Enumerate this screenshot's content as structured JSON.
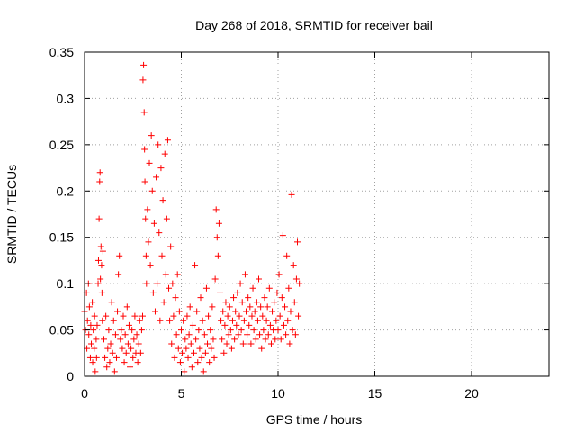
{
  "chart_data": {
    "type": "scatter",
    "title": "Day 268 of 2018, SRMTID for receiver bail",
    "xlabel": "GPS time / hours",
    "ylabel": "SRMTID / TECUs",
    "xlim": [
      0,
      24
    ],
    "ylim": [
      0,
      0.35
    ],
    "x_ticks": [
      0,
      5,
      10,
      15,
      20
    ],
    "x_tick_labels": [
      "0",
      "5",
      "10",
      "15",
      "20"
    ],
    "y_ticks": [
      0,
      0.05,
      0.1,
      0.15,
      0.2,
      0.25,
      0.3,
      0.35
    ],
    "y_tick_labels": [
      "0",
      "0.05",
      "0.1",
      "0.15",
      "0.2",
      "0.25",
      "0.3",
      "0.35"
    ],
    "grid": true,
    "marker": "+",
    "color": "#ff0000",
    "series": [
      {
        "name": "SRMTID",
        "points": [
          [
            0.0,
            0.07
          ],
          [
            0.05,
            0.05
          ],
          [
            0.1,
            0.09
          ],
          [
            0.12,
            0.03
          ],
          [
            0.15,
            0.06
          ],
          [
            0.2,
            0.1
          ],
          [
            0.22,
            0.045
          ],
          [
            0.25,
            0.075
          ],
          [
            0.3,
            0.02
          ],
          [
            0.32,
            0.055
          ],
          [
            0.35,
            0.035
          ],
          [
            0.4,
            0.08
          ],
          [
            0.42,
            0.015
          ],
          [
            0.45,
            0.05
          ],
          [
            0.5,
            0.03
          ],
          [
            0.52,
            0.065
          ],
          [
            0.55,
            0.005
          ],
          [
            0.6,
            0.04
          ],
          [
            0.62,
            0.02
          ],
          [
            0.65,
            0.055
          ],
          [
            0.7,
            0.1
          ],
          [
            0.72,
            0.125
          ],
          [
            0.75,
            0.17
          ],
          [
            0.78,
            0.21
          ],
          [
            0.8,
            0.22
          ],
          [
            0.82,
            0.105
          ],
          [
            0.85,
            0.14
          ],
          [
            0.88,
            0.12
          ],
          [
            0.9,
            0.09
          ],
          [
            0.92,
            0.06
          ],
          [
            0.95,
            0.135
          ],
          [
            1.0,
            0.04
          ],
          [
            1.05,
            0.02
          ],
          [
            1.1,
            0.065
          ],
          [
            1.15,
            0.01
          ],
          [
            1.2,
            0.03
          ],
          [
            1.25,
            0.05
          ],
          [
            1.3,
            0.015
          ],
          [
            1.35,
            0.035
          ],
          [
            1.4,
            0.08
          ],
          [
            1.45,
            0.025
          ],
          [
            1.5,
            0.06
          ],
          [
            1.55,
            0.005
          ],
          [
            1.6,
            0.045
          ],
          [
            1.65,
            0.02
          ],
          [
            1.7,
            0.07
          ],
          [
            1.75,
            0.11
          ],
          [
            1.8,
            0.13
          ],
          [
            1.85,
            0.04
          ],
          [
            1.9,
            0.05
          ],
          [
            1.95,
            0.03
          ],
          [
            2.0,
            0.065
          ],
          [
            2.05,
            0.015
          ],
          [
            2.1,
            0.045
          ],
          [
            2.15,
            0.025
          ],
          [
            2.2,
            0.075
          ],
          [
            2.25,
            0.035
          ],
          [
            2.3,
            0.055
          ],
          [
            2.35,
            0.01
          ],
          [
            2.4,
            0.03
          ],
          [
            2.45,
            0.05
          ],
          [
            2.5,
            0.02
          ],
          [
            2.55,
            0.04
          ],
          [
            2.6,
            0.065
          ],
          [
            2.65,
            0.025
          ],
          [
            2.7,
            0.045
          ],
          [
            2.75,
            0.015
          ],
          [
            2.8,
            0.035
          ],
          [
            2.85,
            0.06
          ],
          [
            2.9,
            0.025
          ],
          [
            2.95,
            0.05
          ],
          [
            3.0,
            0.065
          ],
          [
            3.02,
            0.32
          ],
          [
            3.05,
            0.336
          ],
          [
            3.08,
            0.285
          ],
          [
            3.1,
            0.245
          ],
          [
            3.12,
            0.21
          ],
          [
            3.15,
            0.17
          ],
          [
            3.18,
            0.13
          ],
          [
            3.2,
            0.1
          ],
          [
            3.25,
            0.18
          ],
          [
            3.3,
            0.145
          ],
          [
            3.35,
            0.23
          ],
          [
            3.4,
            0.12
          ],
          [
            3.45,
            0.26
          ],
          [
            3.5,
            0.2
          ],
          [
            3.55,
            0.09
          ],
          [
            3.6,
            0.165
          ],
          [
            3.65,
            0.07
          ],
          [
            3.7,
            0.215
          ],
          [
            3.75,
            0.1
          ],
          [
            3.8,
            0.25
          ],
          [
            3.85,
            0.155
          ],
          [
            3.9,
            0.06
          ],
          [
            3.95,
            0.225
          ],
          [
            4.0,
            0.13
          ],
          [
            4.05,
            0.19
          ],
          [
            4.1,
            0.08
          ],
          [
            4.15,
            0.24
          ],
          [
            4.2,
            0.11
          ],
          [
            4.25,
            0.17
          ],
          [
            4.3,
            0.255
          ],
          [
            4.35,
            0.095
          ],
          [
            4.4,
            0.06
          ],
          [
            4.45,
            0.14
          ],
          [
            4.5,
            0.035
          ],
          [
            4.55,
            0.1
          ],
          [
            4.6,
            0.065
          ],
          [
            4.65,
            0.02
          ],
          [
            4.7,
            0.085
          ],
          [
            4.75,
            0.045
          ],
          [
            4.8,
            0.11
          ],
          [
            4.85,
            0.03
          ],
          [
            4.9,
            0.07
          ],
          [
            4.95,
            0.015
          ],
          [
            5.0,
            0.05
          ],
          [
            5.05,
            0.025
          ],
          [
            5.1,
            0.06
          ],
          [
            5.15,
            0.005
          ],
          [
            5.2,
            0.04
          ],
          [
            5.25,
            0.03
          ],
          [
            5.3,
            0.065
          ],
          [
            5.35,
            0.02
          ],
          [
            5.4,
            0.045
          ],
          [
            5.45,
            0.075
          ],
          [
            5.5,
            0.035
          ],
          [
            5.55,
            0.01
          ],
          [
            5.6,
            0.055
          ],
          [
            5.65,
            0.025
          ],
          [
            5.7,
            0.12
          ],
          [
            5.75,
            0.04
          ],
          [
            5.8,
            0.07
          ],
          [
            5.85,
            0.015
          ],
          [
            5.9,
            0.05
          ],
          [
            5.95,
            0.03
          ],
          [
            6.0,
            0.085
          ],
          [
            6.05,
            0.02
          ],
          [
            6.1,
            0.06
          ],
          [
            6.15,
            0.005
          ],
          [
            6.2,
            0.045
          ],
          [
            6.25,
            0.025
          ],
          [
            6.3,
            0.095
          ],
          [
            6.35,
            0.035
          ],
          [
            6.4,
            0.065
          ],
          [
            6.45,
            0.015
          ],
          [
            6.5,
            0.05
          ],
          [
            6.55,
            0.03
          ],
          [
            6.6,
            0.075
          ],
          [
            6.65,
            0.04
          ],
          [
            6.7,
            0.02
          ],
          [
            6.75,
            0.105
          ],
          [
            6.8,
            0.18
          ],
          [
            6.85,
            0.15
          ],
          [
            6.9,
            0.13
          ],
          [
            6.95,
            0.165
          ],
          [
            7.0,
            0.09
          ],
          [
            7.05,
            0.06
          ],
          [
            7.1,
            0.04
          ],
          [
            7.15,
            0.07
          ],
          [
            7.2,
            0.025
          ],
          [
            7.25,
            0.055
          ],
          [
            7.3,
            0.08
          ],
          [
            7.35,
            0.035
          ],
          [
            7.4,
            0.065
          ],
          [
            7.45,
            0.045
          ],
          [
            7.5,
            0.075
          ],
          [
            7.55,
            0.05
          ],
          [
            7.6,
            0.03
          ],
          [
            7.65,
            0.06
          ],
          [
            7.7,
            0.085
          ],
          [
            7.75,
            0.04
          ],
          [
            7.8,
            0.07
          ],
          [
            7.85,
            0.055
          ],
          [
            7.9,
            0.09
          ],
          [
            7.95,
            0.045
          ],
          [
            8.0,
            0.065
          ],
          [
            8.05,
            0.1
          ],
          [
            8.1,
            0.05
          ],
          [
            8.15,
            0.08
          ],
          [
            8.2,
            0.035
          ],
          [
            8.25,
            0.06
          ],
          [
            8.3,
            0.11
          ],
          [
            8.35,
            0.07
          ],
          [
            8.4,
            0.045
          ],
          [
            8.45,
            0.085
          ],
          [
            8.5,
            0.055
          ],
          [
            8.55,
            0.075
          ],
          [
            8.6,
            0.035
          ],
          [
            8.65,
            0.065
          ],
          [
            8.7,
            0.095
          ],
          [
            8.75,
            0.05
          ],
          [
            8.8,
            0.07
          ],
          [
            8.85,
            0.04
          ],
          [
            8.9,
            0.08
          ],
          [
            8.95,
            0.06
          ],
          [
            9.0,
            0.105
          ],
          [
            9.05,
            0.045
          ],
          [
            9.1,
            0.075
          ],
          [
            9.15,
            0.03
          ],
          [
            9.2,
            0.065
          ],
          [
            9.25,
            0.05
          ],
          [
            9.3,
            0.085
          ],
          [
            9.35,
            0.04
          ],
          [
            9.4,
            0.06
          ],
          [
            9.45,
            0.075
          ],
          [
            9.5,
            0.045
          ],
          [
            9.55,
            0.095
          ],
          [
            9.6,
            0.055
          ],
          [
            9.65,
            0.035
          ],
          [
            9.7,
            0.07
          ],
          [
            9.75,
            0.05
          ],
          [
            9.8,
            0.08
          ],
          [
            9.85,
            0.04
          ],
          [
            9.9,
            0.06
          ],
          [
            9.95,
            0.09
          ],
          [
            10.0,
            0.05
          ],
          [
            10.05,
            0.11
          ],
          [
            10.1,
            0.065
          ],
          [
            10.15,
            0.04
          ],
          [
            10.2,
            0.085
          ],
          [
            10.25,
            0.152
          ],
          [
            10.3,
            0.055
          ],
          [
            10.35,
            0.075
          ],
          [
            10.4,
            0.045
          ],
          [
            10.45,
            0.13
          ],
          [
            10.5,
            0.06
          ],
          [
            10.55,
            0.095
          ],
          [
            10.6,
            0.035
          ],
          [
            10.65,
            0.07
          ],
          [
            10.7,
            0.196
          ],
          [
            10.75,
            0.05
          ],
          [
            10.8,
            0.12
          ],
          [
            10.85,
            0.08
          ],
          [
            10.9,
            0.045
          ],
          [
            10.95,
            0.105
          ],
          [
            11.0,
            0.145
          ],
          [
            11.05,
            0.065
          ],
          [
            11.1,
            0.1
          ]
        ]
      }
    ]
  }
}
